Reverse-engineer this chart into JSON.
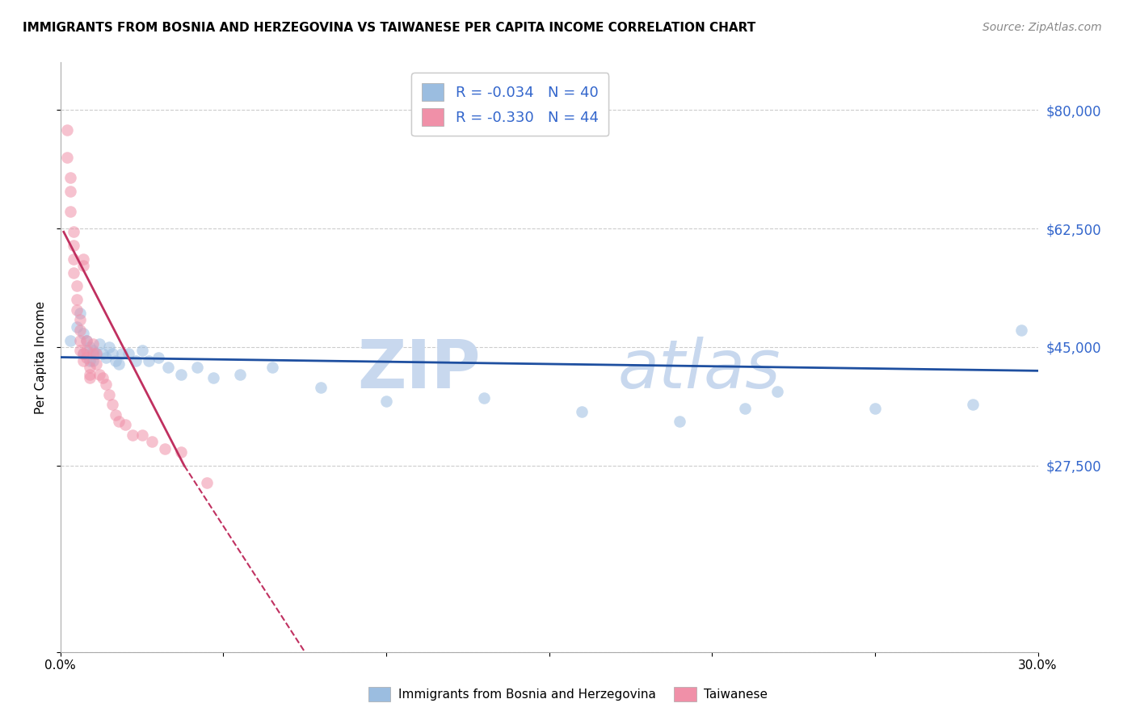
{
  "title": "IMMIGRANTS FROM BOSNIA AND HERZEGOVINA VS TAIWANESE PER CAPITA INCOME CORRELATION CHART",
  "source": "Source: ZipAtlas.com",
  "ylabel": "Per Capita Income",
  "yticks": [
    0,
    27500,
    45000,
    62500,
    80000
  ],
  "ytick_labels": [
    "",
    "$27,500",
    "$45,000",
    "$62,500",
    "$80,000"
  ],
  "xlim": [
    0.0,
    0.3
  ],
  "ylim": [
    0,
    87000
  ],
  "legend_entries": [
    {
      "label": "R = -0.034   N = 40",
      "color": "#a8c8e8"
    },
    {
      "label": "R = -0.330   N = 44",
      "color": "#f0a8b8"
    }
  ],
  "bottom_legend": [
    {
      "label": "Immigrants from Bosnia and Herzegovina",
      "color": "#a8c8e8"
    },
    {
      "label": "Taiwanese",
      "color": "#f0a8b8"
    }
  ],
  "blue_scatter": {
    "x": [
      0.003,
      0.005,
      0.006,
      0.007,
      0.007,
      0.008,
      0.009,
      0.009,
      0.01,
      0.01,
      0.011,
      0.012,
      0.013,
      0.014,
      0.015,
      0.016,
      0.017,
      0.018,
      0.019,
      0.021,
      0.023,
      0.025,
      0.027,
      0.03,
      0.033,
      0.037,
      0.042,
      0.047,
      0.055,
      0.065,
      0.08,
      0.1,
      0.13,
      0.16,
      0.19,
      0.22,
      0.25,
      0.28,
      0.21,
      0.295
    ],
    "y": [
      46000,
      48000,
      50000,
      44000,
      47000,
      46000,
      43000,
      45000,
      44500,
      43000,
      44000,
      45500,
      44000,
      43500,
      45000,
      44000,
      43000,
      42500,
      44000,
      44000,
      43000,
      44500,
      43000,
      43500,
      42000,
      41000,
      42000,
      40500,
      41000,
      42000,
      39000,
      37000,
      37500,
      35500,
      34000,
      38500,
      36000,
      36500,
      36000,
      47500
    ]
  },
  "pink_scatter": {
    "x": [
      0.002,
      0.002,
      0.003,
      0.003,
      0.003,
      0.004,
      0.004,
      0.004,
      0.004,
      0.005,
      0.005,
      0.005,
      0.006,
      0.006,
      0.006,
      0.006,
      0.007,
      0.007,
      0.007,
      0.007,
      0.008,
      0.008,
      0.008,
      0.009,
      0.009,
      0.009,
      0.01,
      0.01,
      0.011,
      0.011,
      0.012,
      0.013,
      0.014,
      0.015,
      0.016,
      0.017,
      0.018,
      0.02,
      0.022,
      0.025,
      0.028,
      0.032,
      0.037,
      0.045
    ],
    "y": [
      77000,
      73000,
      70000,
      68000,
      65000,
      62000,
      60000,
      58000,
      56000,
      54000,
      52000,
      50500,
      49000,
      47500,
      46000,
      44500,
      58000,
      57000,
      44000,
      43000,
      46000,
      44500,
      43500,
      42000,
      41000,
      40500,
      45500,
      44000,
      44000,
      42500,
      41000,
      40500,
      39500,
      38000,
      36500,
      35000,
      34000,
      33500,
      32000,
      32000,
      31000,
      30000,
      29500,
      25000
    ]
  },
  "blue_line": {
    "x": [
      0.0,
      0.3
    ],
    "y": [
      43500,
      41500
    ]
  },
  "pink_line_solid": {
    "x": [
      0.001,
      0.038
    ],
    "y": [
      62000,
      27500
    ]
  },
  "pink_line_dashed": {
    "x": [
      0.038,
      0.075
    ],
    "y": [
      27500,
      0
    ]
  },
  "scatter_size": 110,
  "scatter_alpha": 0.55,
  "blue_color": "#9bbde0",
  "pink_color": "#f090a8",
  "blue_line_color": "#1e4fa0",
  "pink_line_color": "#c03060",
  "title_fontsize": 11,
  "axis_color": "#3366cc",
  "watermark_line1": "ZIP",
  "watermark_line2": "atlas",
  "watermark_color": "#d0dff0",
  "background_color": "#ffffff",
  "grid_color": "#cccccc"
}
